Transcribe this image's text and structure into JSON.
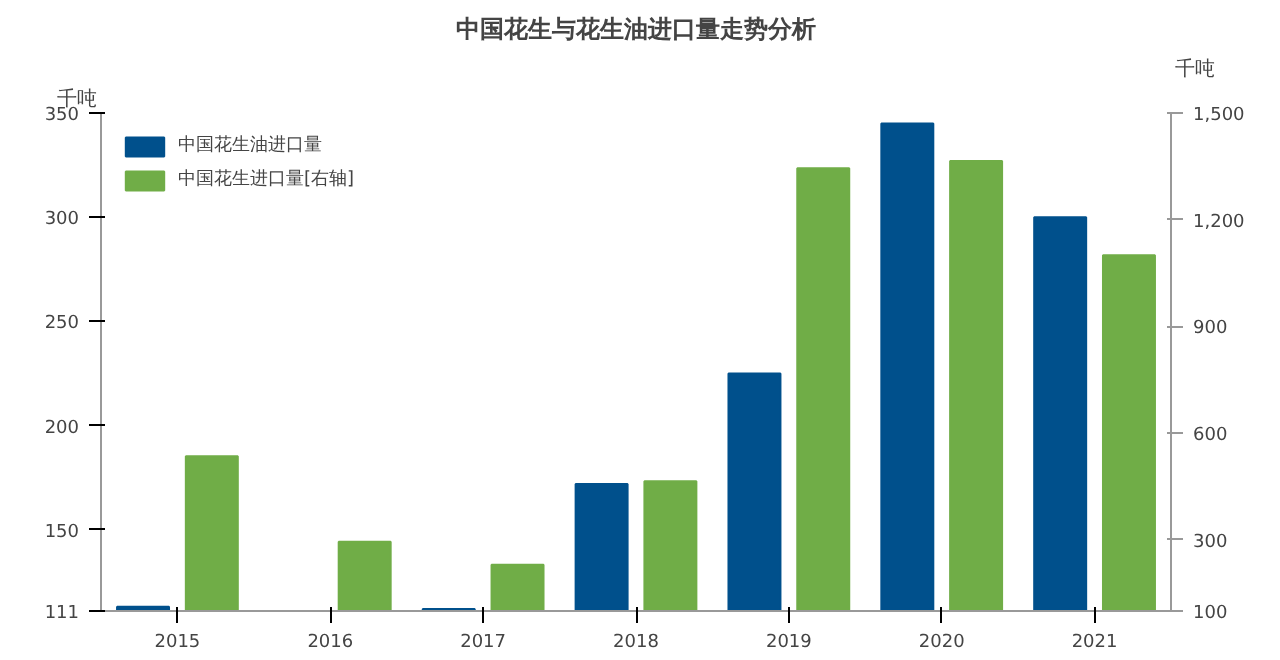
{
  "chart_data": {
    "type": "bar",
    "title": "中国花生与花生油进口量走势分析",
    "ylabel": "千吨",
    "y2label": "千吨",
    "categories": [
      "2015",
      "2016",
      "2017",
      "2018",
      "2019",
      "2020",
      "2021"
    ],
    "series": [
      {
        "name": "中国花生油进口量",
        "color": "#00508c",
        "values": [
          113,
          null,
          112,
          172,
          225,
          345,
          300
        ]
      },
      {
        "name": "中国花生进口量[右轴]",
        "color": "#70ad47",
        "axis": "y2",
        "values": [
          535,
          295,
          230,
          465,
          1345,
          1365,
          1100
        ]
      }
    ],
    "ylim": [
      111,
      350
    ],
    "yticks": [
      111,
      150,
      200,
      250,
      300,
      350
    ],
    "y2lim": [
      100,
      1500
    ],
    "y2ticks": [
      100,
      300,
      600,
      900,
      {
        "value": 1200,
        "label": "1,200"
      },
      {
        "value": 1500,
        "label": "1,500"
      }
    ],
    "grid": false,
    "legend": "top left"
  }
}
